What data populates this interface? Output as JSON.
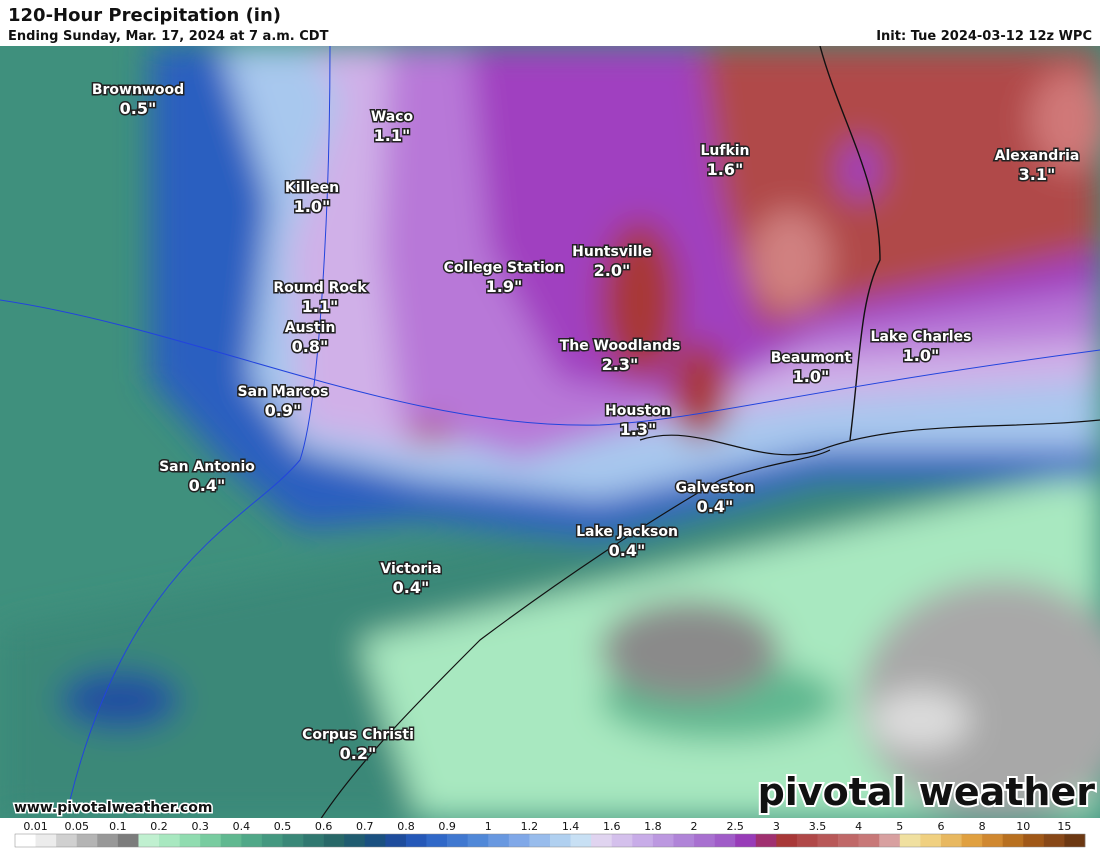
{
  "header": {
    "title": "120-Hour Precipitation (in)",
    "subtitle": "Ending Sunday, Mar. 17, 2024 at 7 a.m. CDT",
    "init": "Init: Tue 2024-03-12 12z WPC"
  },
  "cities": [
    {
      "name": "Brownwood",
      "value": "0.5\""
    },
    {
      "name": "Waco",
      "value": "1.1\""
    },
    {
      "name": "Killeen",
      "value": "1.0\""
    },
    {
      "name": "Round Rock",
      "value": "1.1\""
    },
    {
      "name": "Austin",
      "value": "0.8\""
    },
    {
      "name": "San Marcos",
      "value": "0.9\""
    },
    {
      "name": "San Antonio",
      "value": "0.4\""
    },
    {
      "name": "Victoria",
      "value": "0.4\""
    },
    {
      "name": "Corpus Christi",
      "value": "0.2\""
    },
    {
      "name": "College Station",
      "value": "1.9\""
    },
    {
      "name": "Huntsville",
      "value": "2.0\""
    },
    {
      "name": "Lufkin",
      "value": "1.6\""
    },
    {
      "name": "The Woodlands",
      "value": "2.3\""
    },
    {
      "name": "Houston",
      "value": "1.3\""
    },
    {
      "name": "Galveston",
      "value": "0.4\""
    },
    {
      "name": "Lake Jackson",
      "value": "0.4\""
    },
    {
      "name": "Beaumont",
      "value": "1.0\""
    },
    {
      "name": "Lake Charles",
      "value": "1.0\""
    },
    {
      "name": "Alexandria",
      "value": "3.1\""
    }
  ],
  "footer": {
    "website": "www.pivotalweather.com",
    "brand": "pivotal weather"
  },
  "legend": {
    "ticks": [
      0.01,
      0.05,
      0.1,
      0.2,
      0.3,
      0.4,
      0.5,
      0.6,
      0.7,
      0.8,
      0.9,
      1,
      1.2,
      1.4,
      1.6,
      1.8,
      2,
      2.5,
      3,
      3.5,
      4,
      5,
      6,
      8,
      10,
      15
    ],
    "colors": [
      "#ffffff",
      "#ececec",
      "#d0d0d0",
      "#b4b4b4",
      "#989898",
      "#7c7c7c",
      "#c0f0d0",
      "#a8e8c0",
      "#90dcb0",
      "#78cca0",
      "#60b890",
      "#50a888",
      "#449880",
      "#3a8878",
      "#307870",
      "#286868",
      "#205c70",
      "#1a5080",
      "#1e4c9c",
      "#2558b8",
      "#3068c8",
      "#4078d0",
      "#5088d8",
      "#6898e0",
      "#80a8e8",
      "#98bcec",
      "#b0d0f0",
      "#c8e0f4",
      "#e0d4f0",
      "#d4c0ec",
      "#c8ace8",
      "#bc98e0",
      "#b084d8",
      "#a870d0",
      "#a05cc8",
      "#983cb8",
      "#a03070",
      "#a83838",
      "#b04848",
      "#b85858",
      "#c06868",
      "#c87878",
      "#d8a0a0",
      "#f0e0a0",
      "#f0d080",
      "#e8b860",
      "#e0a040",
      "#d08830",
      "#b87020",
      "#a05818",
      "#884818",
      "#6c3812"
    ]
  }
}
